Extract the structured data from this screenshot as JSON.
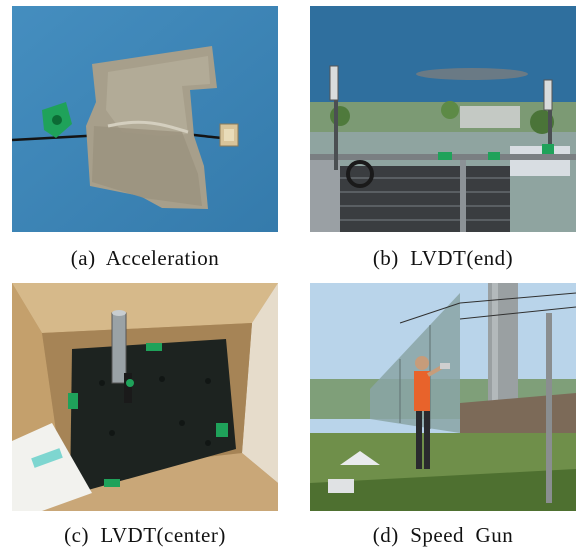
{
  "figure": {
    "panels": [
      {
        "id": "a",
        "caption": "(a)  Acceleration"
      },
      {
        "id": "b",
        "caption": "(b)  LVDT(end)"
      },
      {
        "id": "c",
        "caption": "(c)  LVDT(center)"
      },
      {
        "id": "d",
        "caption": "(d)  Speed  Gun"
      }
    ]
  },
  "colors": {
    "page_background": "#ffffff",
    "caption_text": "#111111",
    "girder_blue": "#3d86b8",
    "duct_tape": "#a79f8b",
    "marker_green": "#1fa25a",
    "cardboard": "#c9a778",
    "rubber_mat": "#1d2320",
    "sky": "#b9d4ea",
    "vest_orange": "#e8632b"
  }
}
